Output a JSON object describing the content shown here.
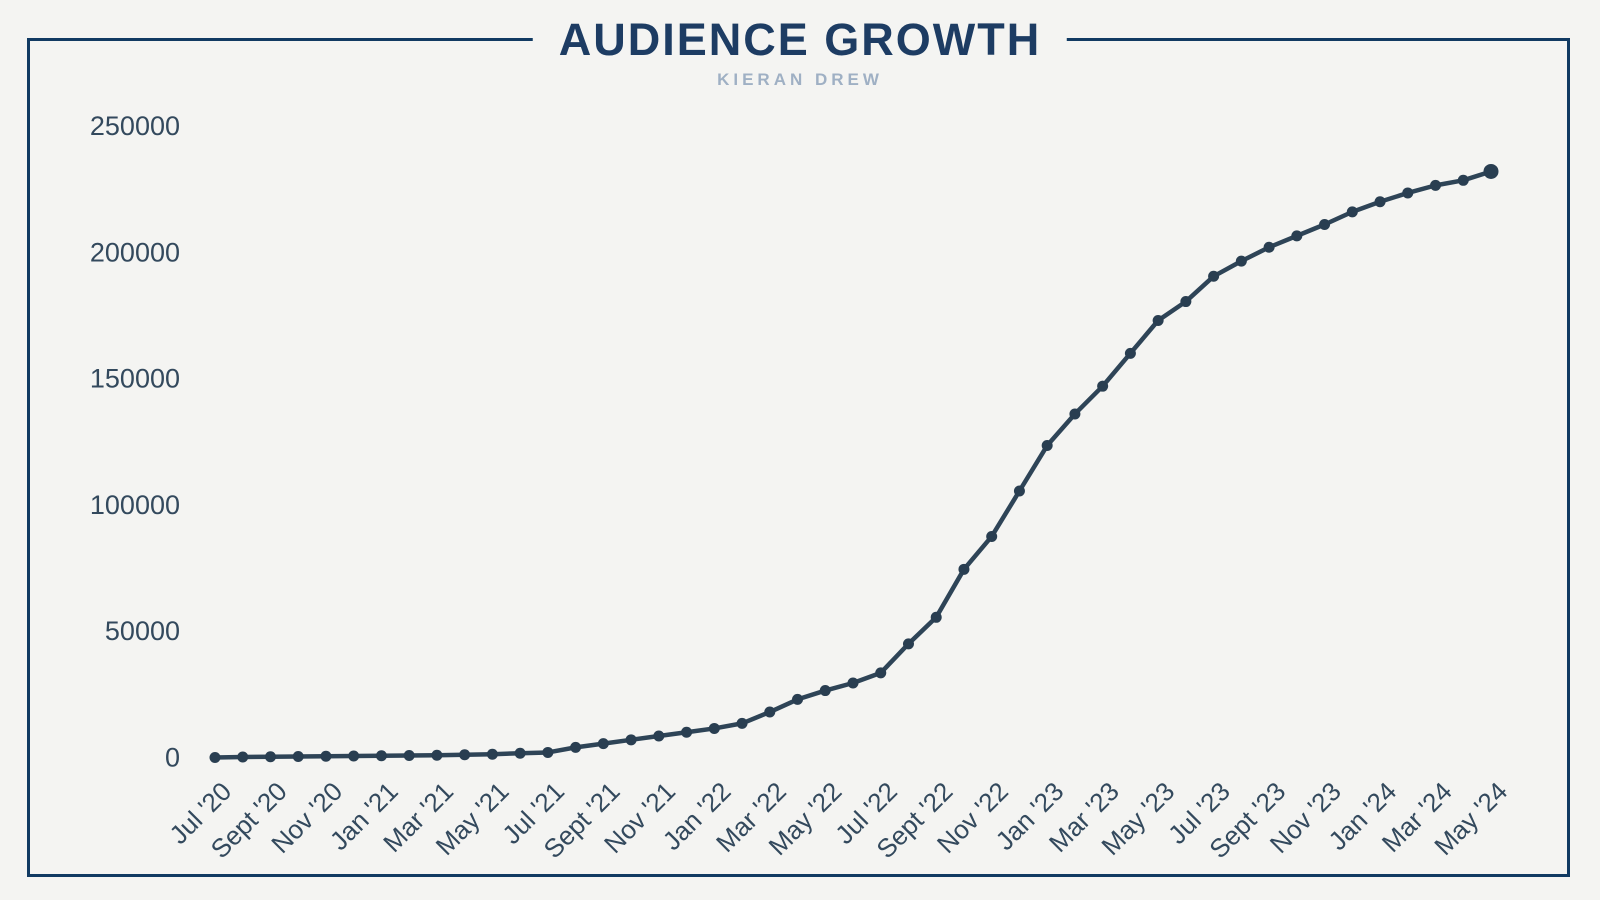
{
  "title": "AUDIENCE GROWTH",
  "subtitle": "KIERAN DREW",
  "colors": {
    "background": "#f4f4f2",
    "frame_border": "#113a62",
    "title": "#1d3c63",
    "subtitle": "#9fb0c4",
    "line": "#2e4457",
    "marker": "#293e51",
    "tick_label": "#33495d"
  },
  "chart_data": {
    "type": "line",
    "title": "AUDIENCE GROWTH",
    "subtitle": "KIERAN DREW",
    "xlabel": "",
    "ylabel": "",
    "grid": false,
    "legend_position": "none",
    "ylim": [
      0,
      250000
    ],
    "y_ticks": [
      0,
      50000,
      100000,
      150000,
      200000,
      250000
    ],
    "x": [
      "Jul '20",
      "Aug '20",
      "Sept '20",
      "Oct '20",
      "Nov '20",
      "Dec '20",
      "Jan '21",
      "Feb '21",
      "Mar '21",
      "Apr '21",
      "May '21",
      "Jun '21",
      "Jul '21",
      "Aug '21",
      "Sept '21",
      "Oct '21",
      "Nov '21",
      "Dec '21",
      "Jan '22",
      "Feb '22",
      "Mar '22",
      "Apr '22",
      "May '22",
      "Jun '22",
      "Jul '22",
      "Aug '22",
      "Sept '22",
      "Oct '22",
      "Nov '22",
      "Dec '22",
      "Jan '23",
      "Feb '23",
      "Mar '23",
      "Apr '23",
      "May '23",
      "Jun '23",
      "Jul '23",
      "Aug '23",
      "Sept '23",
      "Oct '23",
      "Nov '23",
      "Dec '23",
      "Jan '24",
      "Feb '24",
      "Mar '24",
      "Apr '24",
      "May '24"
    ],
    "x_tick_labels": [
      "Jul '20",
      "Sept '20",
      "Nov '20",
      "Jan '21",
      "Mar '21",
      "May '21",
      "Jul '21",
      "Sept '21",
      "Nov '21",
      "Jan '22",
      "Mar '22",
      "May '22",
      "Jul '22",
      "Sept '22",
      "Nov '22",
      "Jan '23",
      "Mar '23",
      "May '23",
      "Jul '23",
      "Sept '23",
      "Nov '23",
      "Jan '24",
      "Mar '24",
      "May '24"
    ],
    "values": [
      0,
      200,
      300,
      400,
      500,
      600,
      700,
      800,
      900,
      1100,
      1300,
      1700,
      2000,
      4000,
      5500,
      7000,
      8500,
      10000,
      11500,
      13500,
      18000,
      23000,
      26500,
      29500,
      33500,
      45000,
      55500,
      74500,
      87500,
      105500,
      123500,
      136000,
      147000,
      160000,
      173000,
      180500,
      190500,
      196500,
      202000,
      206500,
      211000,
      216000,
      220000,
      223500,
      226500,
      228500,
      232000
    ]
  }
}
